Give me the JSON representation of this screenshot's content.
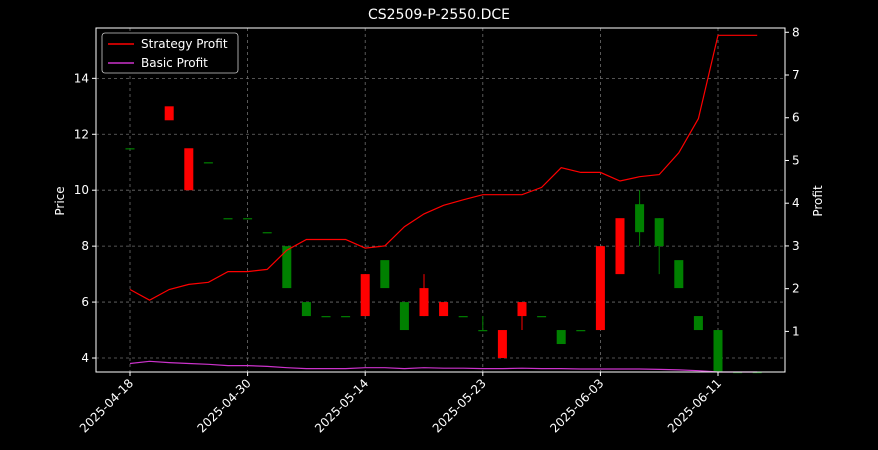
{
  "chart_data": {
    "type": "candlestick",
    "title": "CS2509-P-2550.DCE",
    "ylabel_left": "Price",
    "ylabel_right": "Profit",
    "ylim_left": [
      3.5,
      15.8
    ],
    "ylim_right": [
      0.05,
      8.1
    ],
    "yticks_left": [
      4,
      6,
      8,
      10,
      12,
      14
    ],
    "yticks_right": [
      1,
      2,
      3,
      4,
      5,
      6,
      7,
      8
    ],
    "xticks": [
      "2025-04-18",
      "2025-04-30",
      "2025-05-14",
      "2025-05-23",
      "2025-06-03",
      "2025-06-11"
    ],
    "xtick_index": [
      0,
      6,
      12,
      18,
      24,
      30
    ],
    "grid": true,
    "legend_position": "upper-left",
    "up_color": "#008000",
    "down_color": "#ff0000",
    "candles": [
      {
        "o": 11.5,
        "h": 11.5,
        "l": 11.5,
        "c": 11.5
      },
      {
        "o": null,
        "h": null,
        "l": null,
        "c": null
      },
      {
        "o": 13.0,
        "h": 13.0,
        "l": 12.5,
        "c": 12.5
      },
      {
        "o": 11.5,
        "h": 11.5,
        "l": 10.0,
        "c": 10.0
      },
      {
        "o": 11.0,
        "h": 11.0,
        "l": 11.0,
        "c": 11.0
      },
      {
        "o": 9.0,
        "h": 9.0,
        "l": 9.0,
        "c": 9.0
      },
      {
        "o": 9.0,
        "h": 9.0,
        "l": 9.0,
        "c": 9.0
      },
      {
        "o": 8.5,
        "h": 8.5,
        "l": 8.5,
        "c": 8.5
      },
      {
        "o": 6.5,
        "h": 8.0,
        "l": 6.5,
        "c": 8.0
      },
      {
        "o": 5.5,
        "h": 6.0,
        "l": 5.5,
        "c": 6.0
      },
      {
        "o": 5.5,
        "h": 5.5,
        "l": 5.5,
        "c": 5.5
      },
      {
        "o": 5.5,
        "h": 5.5,
        "l": 5.5,
        "c": 5.5
      },
      {
        "o": 7.0,
        "h": 7.0,
        "l": 5.5,
        "c": 5.5
      },
      {
        "o": 6.5,
        "h": 7.5,
        "l": 6.5,
        "c": 7.5
      },
      {
        "o": 5.0,
        "h": 6.0,
        "l": 5.0,
        "c": 6.0
      },
      {
        "o": 6.5,
        "h": 7.0,
        "l": 5.5,
        "c": 5.5
      },
      {
        "o": 6.0,
        "h": 6.0,
        "l": 5.5,
        "c": 5.5
      },
      {
        "o": 5.5,
        "h": 5.5,
        "l": 5.5,
        "c": 5.5
      },
      {
        "o": 5.0,
        "h": 5.5,
        "l": 5.0,
        "c": 5.0
      },
      {
        "o": 5.0,
        "h": 5.0,
        "l": 4.0,
        "c": 4.0
      },
      {
        "o": 6.0,
        "h": 6.0,
        "l": 5.0,
        "c": 5.5
      },
      {
        "o": 5.5,
        "h": 5.5,
        "l": 5.5,
        "c": 5.5
      },
      {
        "o": 4.5,
        "h": 5.0,
        "l": 4.5,
        "c": 5.0
      },
      {
        "o": 5.0,
        "h": 5.0,
        "l": 5.0,
        "c": 5.0
      },
      {
        "o": 8.0,
        "h": 8.0,
        "l": 5.0,
        "c": 5.0
      },
      {
        "o": 9.0,
        "h": 9.0,
        "l": 7.0,
        "c": 7.0
      },
      {
        "o": 8.5,
        "h": 10.0,
        "l": 8.0,
        "c": 9.5
      },
      {
        "o": 8.0,
        "h": 9.0,
        "l": 7.0,
        "c": 9.0
      },
      {
        "o": 6.5,
        "h": 7.5,
        "l": 6.5,
        "c": 7.5
      },
      {
        "o": 5.0,
        "h": 5.5,
        "l": 5.0,
        "c": 5.5
      },
      {
        "o": 3.5,
        "h": 5.0,
        "l": 3.5,
        "c": 5.0
      },
      {
        "o": 3.5,
        "h": 3.5,
        "l": 3.5,
        "c": 3.5
      },
      {
        "o": 3.5,
        "h": 3.5,
        "l": 3.5,
        "c": 3.5
      }
    ],
    "series": [
      {
        "name": "Strategy Profit",
        "color": "#ff0000",
        "axis": "right",
        "values": [
          1.98,
          1.73,
          1.98,
          2.1,
          2.15,
          2.4,
          2.4,
          2.45,
          2.9,
          3.15,
          3.15,
          3.15,
          2.95,
          3.0,
          3.45,
          3.75,
          3.95,
          4.08,
          4.2,
          4.2,
          4.2,
          4.37,
          4.83,
          4.72,
          4.72,
          4.52,
          4.62,
          4.67,
          5.18,
          5.98,
          7.93,
          7.93,
          7.93
        ]
      },
      {
        "name": "Basic Profit",
        "color": "#cc33cc",
        "axis": "right",
        "values": [
          0.25,
          0.3,
          0.27,
          0.25,
          0.23,
          0.2,
          0.2,
          0.18,
          0.15,
          0.13,
          0.13,
          0.13,
          0.15,
          0.15,
          0.13,
          0.15,
          0.14,
          0.14,
          0.13,
          0.13,
          0.14,
          0.13,
          0.13,
          0.12,
          0.12,
          0.12,
          0.12,
          0.11,
          0.1,
          0.08,
          0.05,
          0.05,
          0.05
        ]
      }
    ]
  }
}
